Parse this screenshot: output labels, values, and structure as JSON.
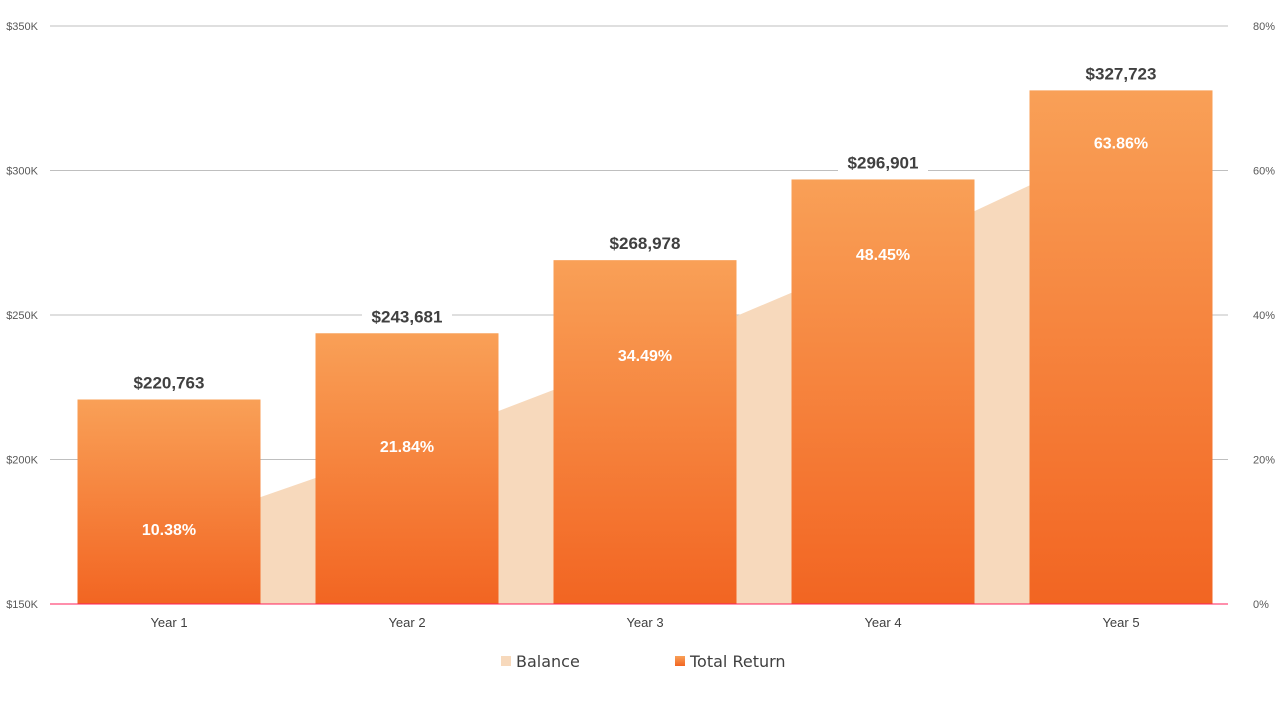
{
  "chart_data": {
    "type": "bar",
    "title": "",
    "categories": [
      "Year 1",
      "Year 2",
      "Year 3",
      "Year 4",
      "Year 5"
    ],
    "series": [
      {
        "name": "Balance",
        "type": "bar",
        "axis": "left",
        "values": [
          220763,
          243681,
          268978,
          296901,
          327723
        ],
        "labels": [
          "$220,763",
          "$243,681",
          "$268,978",
          "$296,901",
          "$327,723"
        ]
      },
      {
        "name": "Total Return",
        "type": "area",
        "axis": "right",
        "values": [
          10.38,
          21.84,
          34.49,
          48.45,
          63.86
        ],
        "labels": [
          "10.38%",
          "21.84%",
          "34.49%",
          "48.45%",
          "63.86%"
        ]
      }
    ],
    "y_left": {
      "range": [
        150000,
        350000
      ],
      "ticks": [
        "$150K",
        "$200K",
        "$250K",
        "$300K",
        "$350K"
      ]
    },
    "y_right": {
      "range": [
        0,
        80
      ],
      "ticks": [
        "0%",
        "20%",
        "40%",
        "60%",
        "80%"
      ]
    },
    "grid": true,
    "legend": {
      "placement": "bottom",
      "entries": [
        "Balance",
        "Total Return"
      ]
    },
    "colors": {
      "bar_top": "#F9A057",
      "bar_bottom": "#F26522",
      "area": "#F7D9BC",
      "grid": "#BFBFBF",
      "baseline": "#FF1F5A"
    }
  }
}
